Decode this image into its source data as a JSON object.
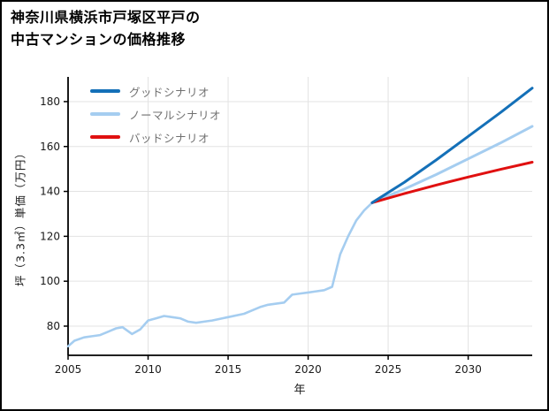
{
  "title": {
    "line1": "神奈川県横浜市戸塚区平戸の",
    "line2": "中古マンションの価格推移"
  },
  "chart_data": {
    "type": "line",
    "title": "神奈川県横浜市戸塚区平戸の中古マンションの価格推移",
    "xlabel": "年",
    "ylabel": "坪（3.3㎡）単価（万円）",
    "xlim": [
      2005,
      2034
    ],
    "ylim": [
      67,
      191
    ],
    "x_ticks": [
      2005,
      2010,
      2015,
      2020,
      2025,
      2030
    ],
    "y_ticks": [
      80,
      100,
      120,
      140,
      160,
      180
    ],
    "grid": true,
    "legend_position": "upper-left",
    "legend": [
      {
        "label": "グッドシナリオ",
        "color": "#1470b8"
      },
      {
        "label": "ノーマルシナリオ",
        "color": "#a5cdf0"
      },
      {
        "label": "バッドシナリオ",
        "color": "#e01010"
      }
    ],
    "series": [
      {
        "name": "price-history",
        "color": "#a5cdf0",
        "width": 2.6,
        "x": [
          2005,
          2005.4,
          2006,
          2006.5,
          2007,
          2007.5,
          2008,
          2008.4,
          2009,
          2009.5,
          2010,
          2010.5,
          2011,
          2011.5,
          2012,
          2012.5,
          2013,
          2013.5,
          2014,
          2015,
          2016,
          2016.5,
          2017,
          2017.5,
          2018,
          2018.5,
          2019,
          2019.5,
          2020,
          2020.5,
          2021,
          2021.5,
          2022,
          2022.5,
          2023,
          2023.5,
          2024
        ],
        "y": [
          71,
          73.5,
          75,
          75.5,
          76,
          77.5,
          79,
          79.5,
          76.5,
          78.5,
          82.5,
          83.5,
          84.5,
          84,
          83.5,
          82,
          81.5,
          82,
          82.5,
          84,
          85.5,
          87,
          88.5,
          89.5,
          90,
          90.5,
          94,
          94.5,
          95,
          95.5,
          96,
          97.5,
          112,
          120,
          127,
          131.5,
          135
        ]
      },
      {
        "name": "normal-scenario",
        "color": "#a5cdf0",
        "width": 3,
        "x": [
          2024,
          2026,
          2028,
          2030,
          2032,
          2034
        ],
        "y": [
          135,
          141,
          147.5,
          154.5,
          161.5,
          169
        ]
      },
      {
        "name": "bad-scenario",
        "color": "#e01010",
        "width": 3,
        "x": [
          2024,
          2026,
          2028,
          2030,
          2032,
          2034
        ],
        "y": [
          135,
          139,
          142.8,
          146.4,
          149.8,
          153
        ]
      },
      {
        "name": "good-scenario",
        "color": "#1470b8",
        "width": 3,
        "x": [
          2024,
          2026,
          2028,
          2030,
          2032,
          2034
        ],
        "y": [
          135,
          144,
          154,
          164.5,
          175,
          186
        ]
      }
    ]
  }
}
